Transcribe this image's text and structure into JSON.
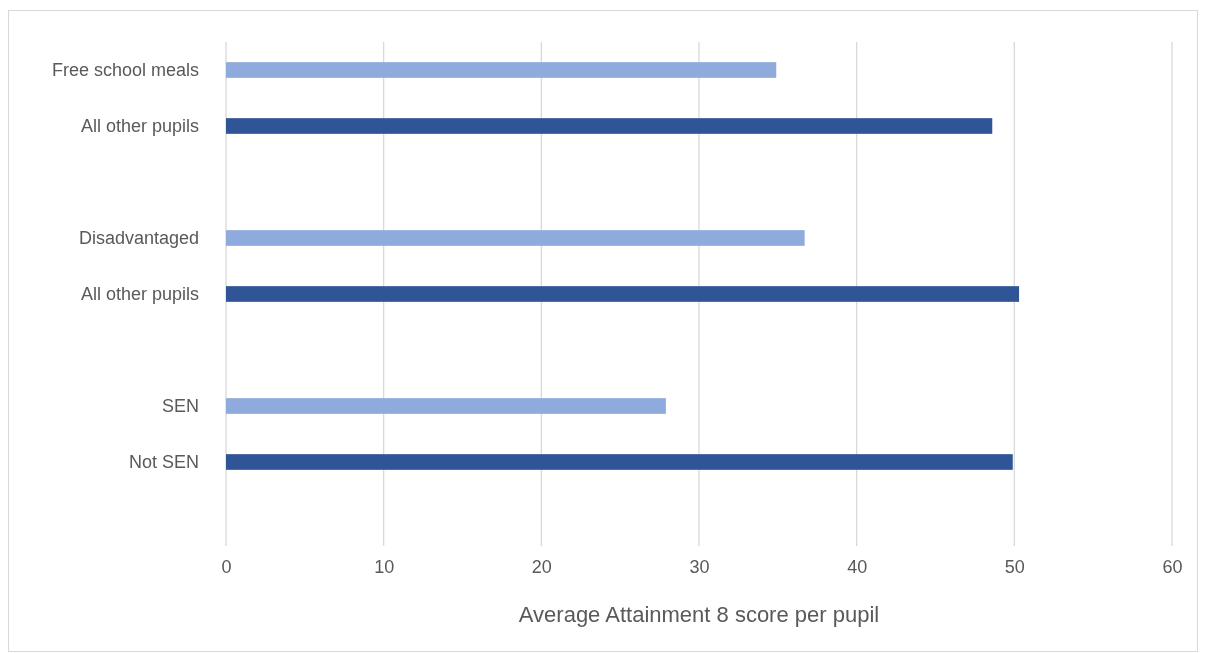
{
  "chart_data": {
    "type": "bar",
    "orientation": "horizontal",
    "xlabel": "Average Attainment 8 score per pupil",
    "categories": [
      "Free school meals",
      "All other pupils",
      null,
      "Disadvantaged",
      "All other pupils",
      null,
      "SEN",
      "Not SEN",
      null
    ],
    "values": [
      34.9,
      48.6,
      null,
      36.7,
      50.3,
      null,
      27.9,
      49.9,
      null
    ],
    "colors": [
      "#8faadc",
      "#2f5597",
      null,
      "#8faadc",
      "#2f5597",
      null,
      "#8faadc",
      "#2f5597",
      null
    ],
    "xlim": [
      0,
      60
    ],
    "xticks": [
      0,
      10,
      20,
      30,
      40,
      50,
      60
    ],
    "grid": "x"
  }
}
